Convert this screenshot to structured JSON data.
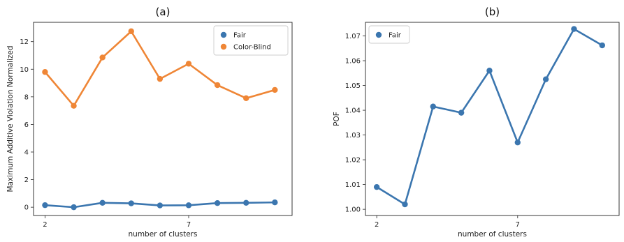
{
  "chart_data": [
    {
      "type": "line",
      "title": "(a)",
      "xlabel": "number of clusters",
      "ylabel": "Maximum Additive Violation Normalized",
      "x": [
        2,
        3,
        4,
        5,
        6,
        7,
        8,
        9,
        10
      ],
      "x_ticks": [
        "2",
        "7"
      ],
      "ylim": [
        -0.6,
        13.4
      ],
      "y_ticks": [
        "0",
        "2",
        "4",
        "6",
        "8",
        "10",
        "12"
      ],
      "legend": "top-right",
      "series": [
        {
          "name": "Fair",
          "color": "#3b76af",
          "values": [
            0.15,
            0.0,
            0.32,
            0.28,
            0.13,
            0.14,
            0.3,
            0.32,
            0.35
          ]
        },
        {
          "name": "Color-Blind",
          "color": "#ef8636",
          "values": [
            9.8,
            7.35,
            10.85,
            12.75,
            9.3,
            10.4,
            8.85,
            7.9,
            8.5
          ]
        }
      ]
    },
    {
      "type": "line",
      "title": "(b)",
      "xlabel": "number of clusters",
      "ylabel": "POF",
      "x": [
        2,
        3,
        4,
        5,
        6,
        7,
        8,
        9,
        10
      ],
      "x_ticks": [
        "2",
        "7"
      ],
      "ylim": [
        0.9975,
        1.0755
      ],
      "y_ticks": [
        "1.00",
        "1.01",
        "1.02",
        "1.03",
        "1.04",
        "1.05",
        "1.06",
        "1.07"
      ],
      "legend": "top-left",
      "series": [
        {
          "name": "Fair",
          "color": "#3b76af",
          "values": [
            1.009,
            1.002,
            1.0415,
            1.039,
            1.056,
            1.027,
            1.0525,
            1.0728,
            1.0662
          ]
        }
      ]
    }
  ]
}
